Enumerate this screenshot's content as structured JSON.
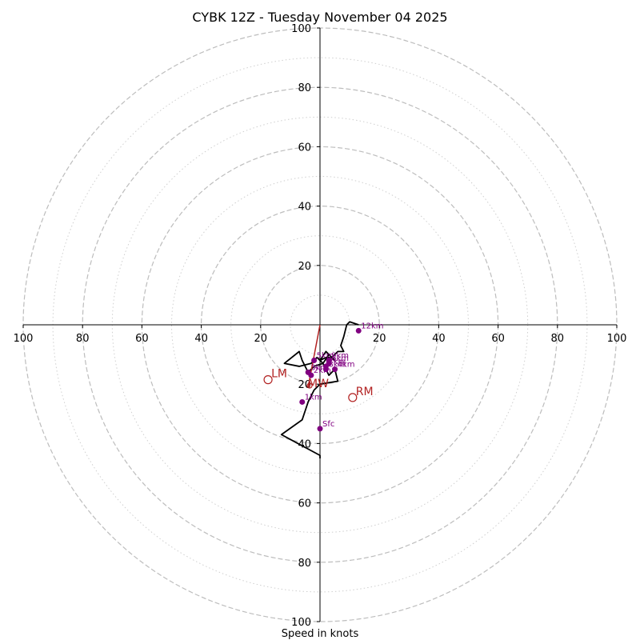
{
  "chart_data": {
    "type": "hodograph",
    "title": "CYBK 12Z - Tuesday November 04 2025",
    "xlabel": "Speed in knots",
    "ylabel": "",
    "max_speed": 100,
    "rings_major": [
      20,
      40,
      60,
      80,
      100
    ],
    "rings_minor": [
      10,
      30,
      50,
      70,
      90
    ],
    "x_tick_labels": [
      {
        "value": -100,
        "label": "100"
      },
      {
        "value": -80,
        "label": "80"
      },
      {
        "value": -60,
        "label": "60"
      },
      {
        "value": -40,
        "label": "40"
      },
      {
        "value": -20,
        "label": "20"
      },
      {
        "value": 20,
        "label": "20"
      },
      {
        "value": 40,
        "label": "40"
      },
      {
        "value": 60,
        "label": "60"
      },
      {
        "value": 80,
        "label": "80"
      },
      {
        "value": 100,
        "label": "100"
      }
    ],
    "y_tick_labels": [
      {
        "value": 100,
        "label": "100"
      },
      {
        "value": 80,
        "label": "80"
      },
      {
        "value": 60,
        "label": "60"
      },
      {
        "value": 40,
        "label": "40"
      },
      {
        "value": 20,
        "label": "20"
      },
      {
        "value": -20,
        "label": "20"
      },
      {
        "value": -40,
        "label": "40"
      },
      {
        "value": -60,
        "label": "60"
      },
      {
        "value": -80,
        "label": "80"
      },
      {
        "value": -100,
        "label": "100"
      }
    ],
    "wind_profile": {
      "name": "Hodograph trace",
      "color": "#000000",
      "u": [
        0,
        0,
        -13,
        -6,
        -4,
        -2,
        0,
        6,
        5,
        3,
        1,
        -2,
        -4,
        -6,
        -7,
        -12,
        -7,
        -3,
        -1,
        1,
        3,
        5,
        4,
        2,
        0,
        2,
        4,
        6,
        8,
        7,
        8,
        9,
        10,
        13
      ],
      "v": [
        -45,
        -44,
        -37,
        -32,
        -26,
        -22,
        -20,
        -19,
        -15,
        -17,
        -13,
        -14,
        -16,
        -12,
        -9,
        -13,
        -14,
        -13,
        -11,
        -13,
        -10,
        -12,
        -11,
        -9,
        -12,
        -11,
        -11,
        -9,
        -9,
        -7,
        -4,
        0,
        1,
        0
      ]
    },
    "height_markers": {
      "color": "#800080",
      "points": [
        {
          "label": "Sfc",
          "u": 0,
          "v": -35
        },
        {
          "label": "1km",
          "u": -6,
          "v": -26
        },
        {
          "label": "2km",
          "u": -3,
          "v": -17
        },
        {
          "label": "3km",
          "u": -4,
          "v": -16
        },
        {
          "label": "4km",
          "u": 5,
          "v": -15
        },
        {
          "label": "5km",
          "u": -2,
          "v": -12
        },
        {
          "label": "6km",
          "u": 3,
          "v": -13
        },
        {
          "label": "7km",
          "u": 2,
          "v": -14
        },
        {
          "label": "8km",
          "u": 2,
          "v": -15
        },
        {
          "label": "9km",
          "u": 3,
          "v": -12
        },
        {
          "label": "12km",
          "u": 13,
          "v": -2
        }
      ]
    },
    "storm_motion": {
      "color": "#b22222",
      "points": [
        {
          "label": "LM",
          "u": -17.5,
          "v": -18.5
        },
        {
          "label": "RM",
          "u": 11,
          "v": -24.5
        },
        {
          "label": "MW",
          "u": -3.5,
          "v": -20.5
        }
      ],
      "shear_line": {
        "u": [
          0,
          -4
        ],
        "v": [
          0,
          -21
        ]
      }
    }
  }
}
